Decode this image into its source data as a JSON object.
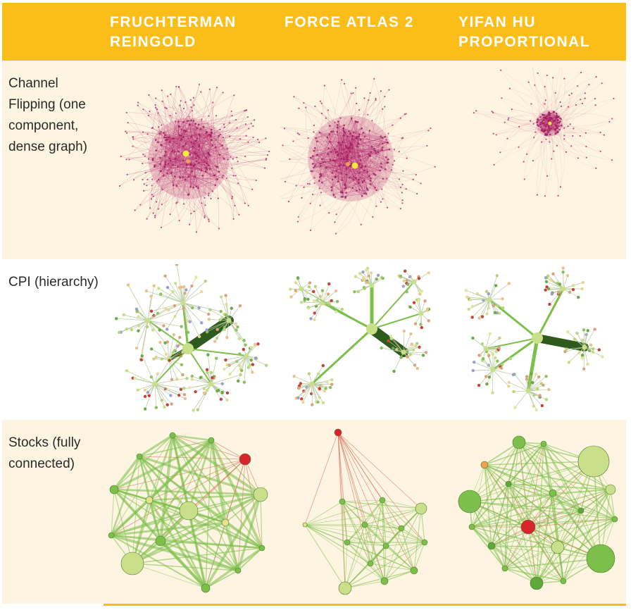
{
  "header": {
    "columns": [
      "FRUCHTERMAN\nREINGOLD",
      "FORCE ATLAS 2",
      "YIFAN HU\nPROPORTIONAL"
    ]
  },
  "rows": [
    {
      "label": "Channel Flipping (one component, dense graph)"
    },
    {
      "label": "CPI (hierarchy)"
    },
    {
      "label": "Stocks (fully connected)"
    }
  ],
  "colors": {
    "header_bg": "#fbbd17",
    "row_bg_light": "#fdf5e1",
    "magenta_node": "#b3246b",
    "highlight_node": "#f7e63b",
    "green_dark": "#2f5a1e",
    "green_mid": "#7cbf4a",
    "green_light": "#c9df8a",
    "red_node": "#d9232d",
    "orange_node": "#f0a050"
  }
}
